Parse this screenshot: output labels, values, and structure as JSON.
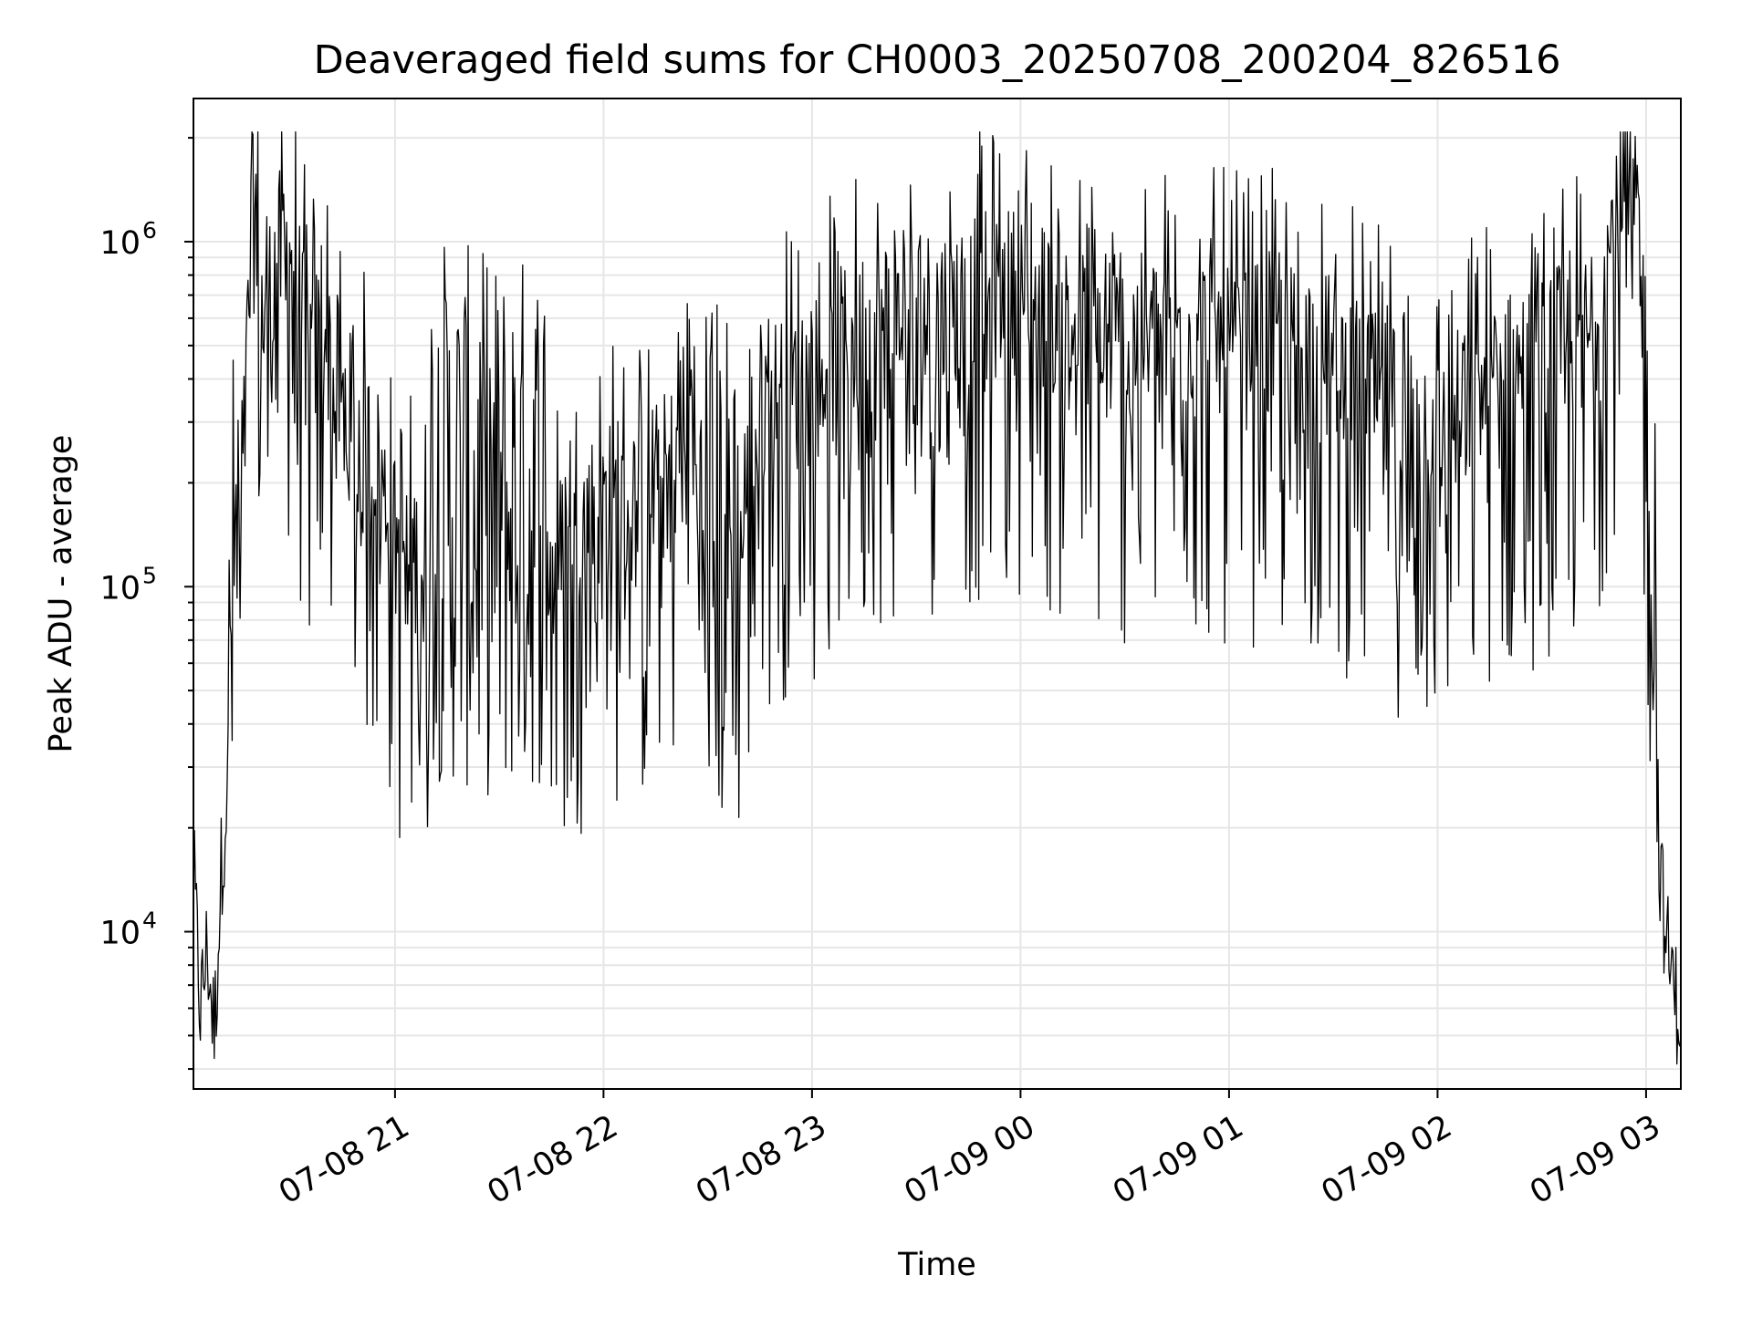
{
  "chart_data": {
    "type": "line",
    "title": "Deaveraged field sums for CH0003_20250708_200204_826516",
    "xlabel": "Time",
    "ylabel": "Peak ADU - average",
    "yscale": "log",
    "ylim": [
      3500,
      2600000
    ],
    "xlim": [
      "2025-07-08 20:02",
      "2025-07-09 03:10"
    ],
    "grid": true,
    "line_color": "#000000",
    "grid_color": "#e6e6e6",
    "x_ticks": [
      {
        "value": "2025-07-08 21:00",
        "label": "07-08 21"
      },
      {
        "value": "2025-07-08 22:00",
        "label": "07-08 22"
      },
      {
        "value": "2025-07-08 23:00",
        "label": "07-08 23"
      },
      {
        "value": "2025-07-09 00:00",
        "label": "07-09 00"
      },
      {
        "value": "2025-07-09 01:00",
        "label": "07-09 01"
      },
      {
        "value": "2025-07-09 02:00",
        "label": "07-09 02"
      },
      {
        "value": "2025-07-09 03:00",
        "label": "07-09 03"
      }
    ],
    "y_ticks": [
      {
        "value": 10000,
        "base": "10",
        "exp": "4"
      },
      {
        "value": 100000,
        "base": "10",
        "exp": "5"
      },
      {
        "value": 1000000,
        "base": "10",
        "exp": "6"
      }
    ],
    "series": [
      {
        "values": [
          [
            "2025-07-08 20:02",
            15000
          ],
          [
            "2025-07-08 20:04",
            6000
          ],
          [
            "2025-07-08 20:06",
            9000
          ],
          [
            "2025-07-08 20:08",
            5000
          ],
          [
            "2025-07-08 20:10",
            15000
          ],
          [
            "2025-07-08 20:12",
            30000
          ],
          [
            "2025-07-08 20:14",
            60000
          ],
          [
            "2025-07-08 20:16",
            150000
          ],
          [
            "2025-07-08 20:18",
            600000
          ],
          [
            "2025-07-08 20:20",
            1200000
          ],
          [
            "2025-07-08 20:22",
            500000
          ],
          [
            "2025-07-08 20:26",
            800000
          ],
          [
            "2025-07-08 20:30",
            900000
          ],
          [
            "2025-07-08 20:35",
            400000
          ],
          [
            "2025-07-08 20:40",
            500000
          ],
          [
            "2025-07-08 20:45",
            300000
          ],
          [
            "2025-07-08 20:50",
            250000
          ],
          [
            "2025-07-08 20:55",
            200000
          ],
          [
            "2025-07-08 21:00",
            120000
          ],
          [
            "2025-07-08 21:10",
            100000
          ],
          [
            "2025-07-08 21:20",
            90000
          ],
          [
            "2025-07-08 21:30",
            85000
          ],
          [
            "2025-07-08 21:40",
            90000
          ],
          [
            "2025-07-08 21:50",
            120000
          ],
          [
            "2025-07-08 22:00",
            160000
          ],
          [
            "2025-07-08 22:10",
            150000
          ],
          [
            "2025-07-08 22:20",
            200000
          ],
          [
            "2025-07-08 22:25",
            400000
          ],
          [
            "2025-07-08 22:30",
            80000
          ],
          [
            "2025-07-08 22:35",
            60000
          ],
          [
            "2025-07-08 22:45",
            300000
          ],
          [
            "2025-07-08 23:00",
            350000
          ],
          [
            "2025-07-08 23:15",
            500000
          ],
          [
            "2025-07-08 23:30",
            550000
          ],
          [
            "2025-07-08 23:45",
            600000
          ],
          [
            "2025-07-09 00:00",
            650000
          ],
          [
            "2025-07-09 00:15",
            500000
          ],
          [
            "2025-07-09 00:30",
            450000
          ],
          [
            "2025-07-09 00:45",
            500000
          ],
          [
            "2025-07-09 01:00",
            450000
          ],
          [
            "2025-07-09 01:15",
            450000
          ],
          [
            "2025-07-09 01:30",
            400000
          ],
          [
            "2025-07-09 01:45",
            300000
          ],
          [
            "2025-07-09 02:00",
            250000
          ],
          [
            "2025-07-09 02:15",
            350000
          ],
          [
            "2025-07-09 02:30",
            400000
          ],
          [
            "2025-07-09 02:45",
            500000
          ],
          [
            "2025-07-09 02:52",
            1100000
          ],
          [
            "2025-07-09 02:58",
            1000000
          ],
          [
            "2025-07-09 03:00",
            400000
          ],
          [
            "2025-07-09 03:02",
            100000
          ],
          [
            "2025-07-09 03:04",
            15000
          ],
          [
            "2025-07-09 03:06",
            9000
          ],
          [
            "2025-07-09 03:09",
            6000
          ]
        ]
      }
    ]
  }
}
